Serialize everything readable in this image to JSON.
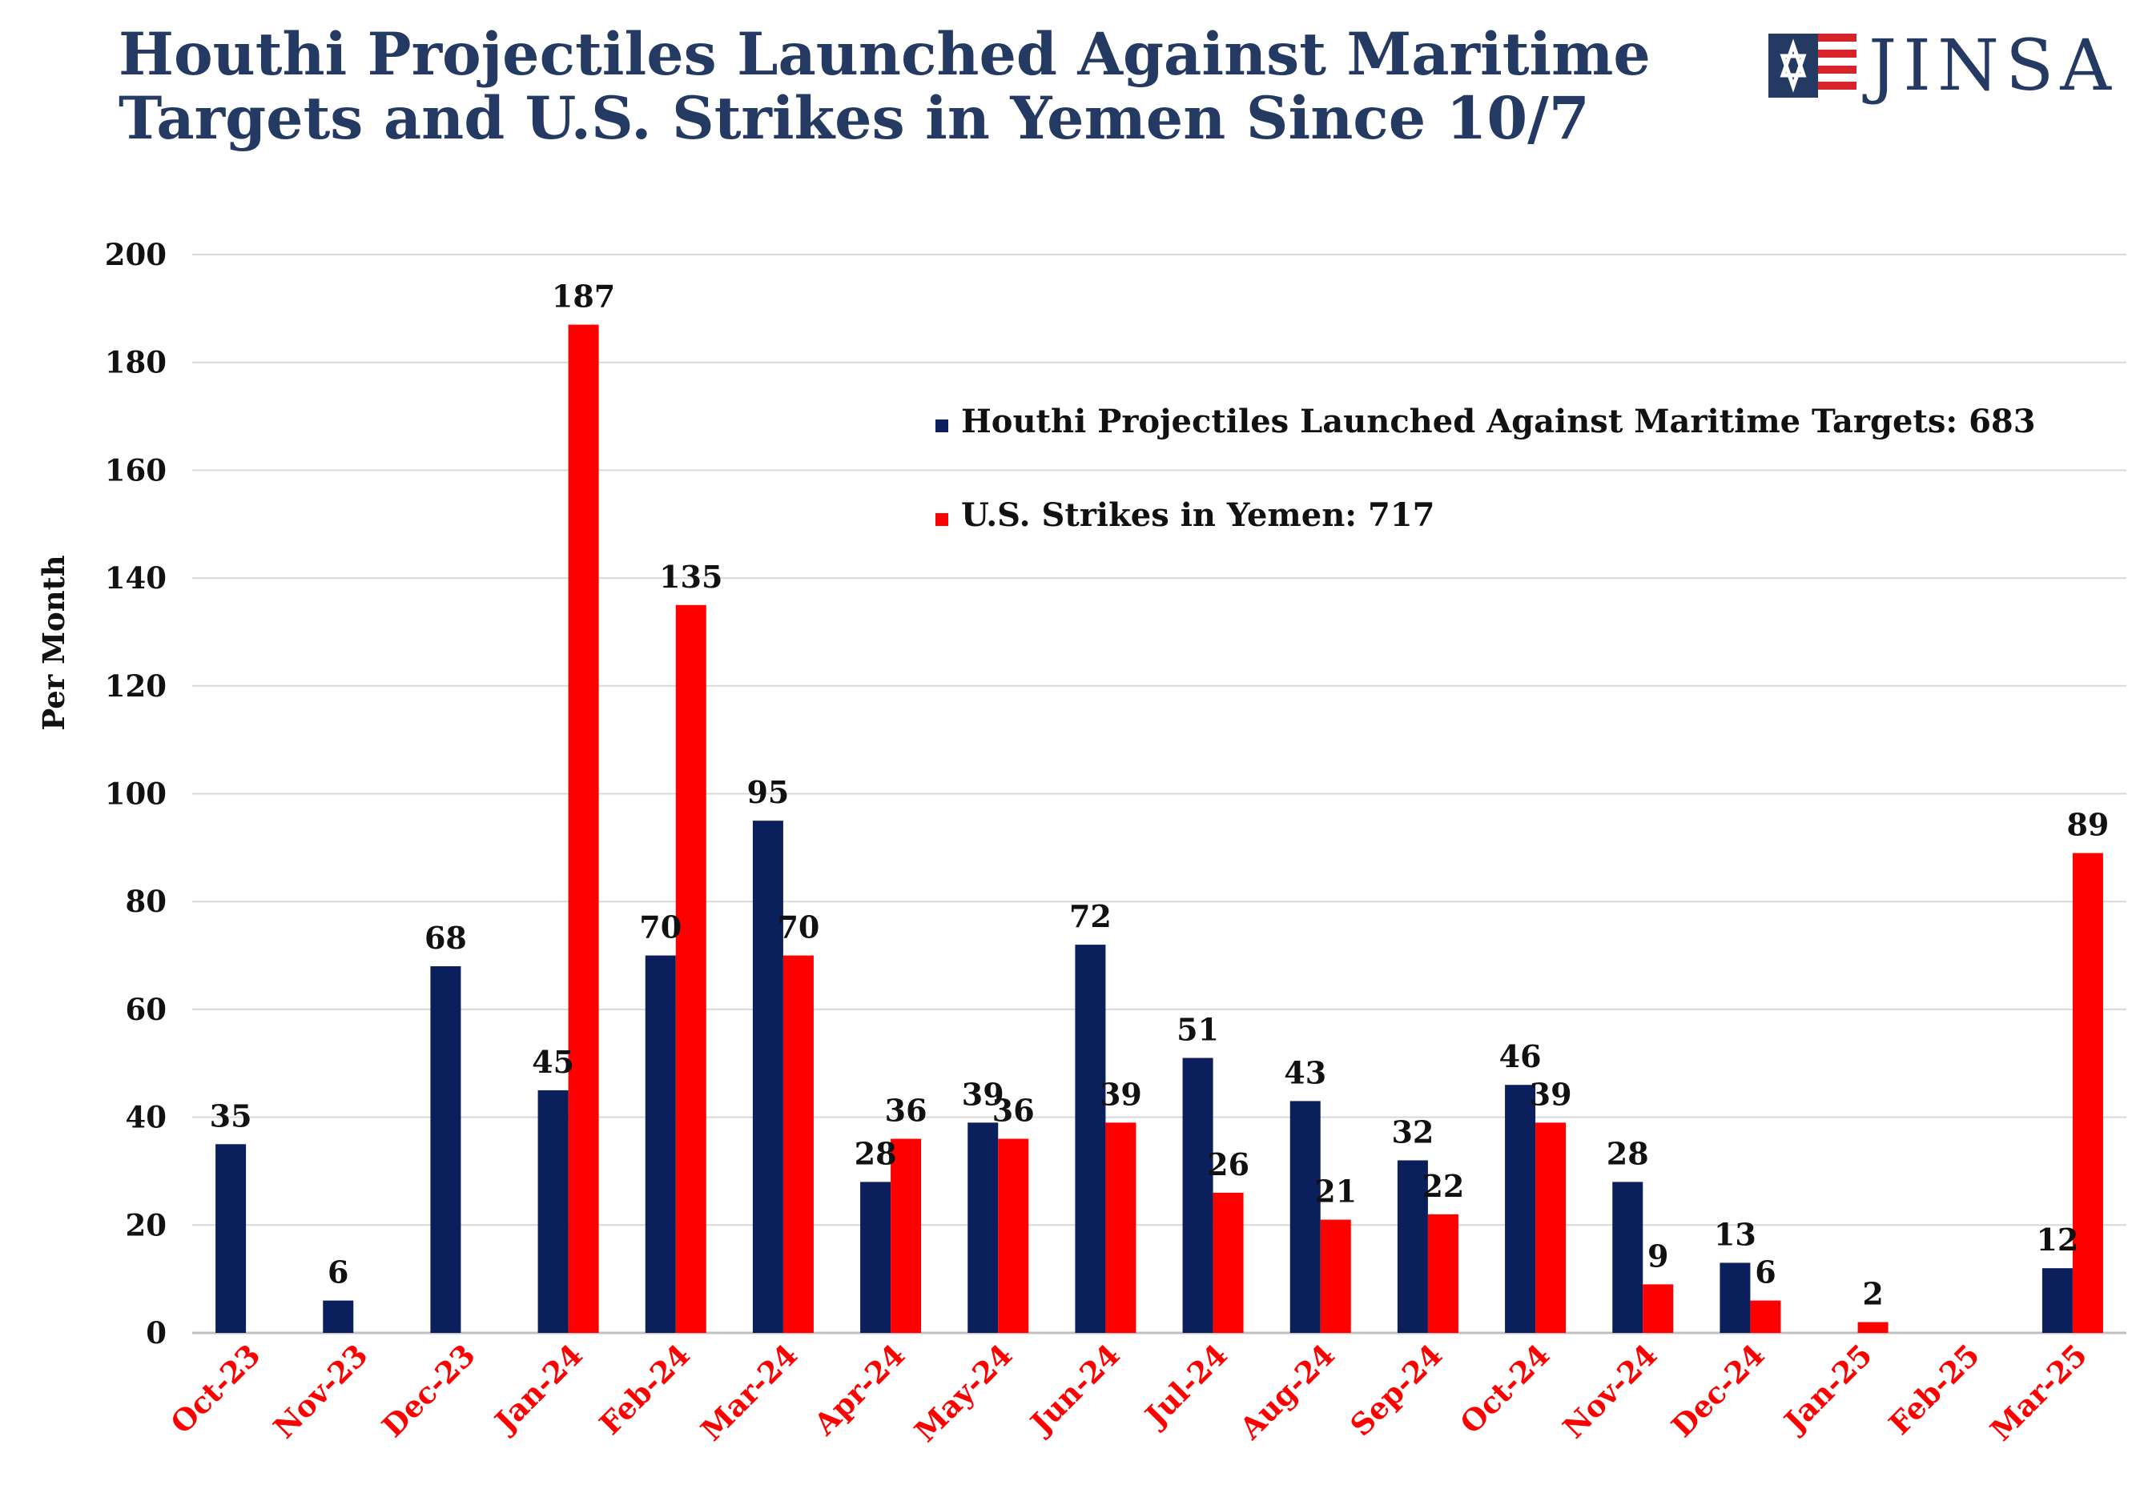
{
  "title": {
    "line1": "Houthi Projectiles Launched Against Maritime",
    "line2": "Targets and U.S. Strikes in Yemen Since 10/7"
  },
  "logo": {
    "text": "JINSA",
    "icon": "flag-star-icon"
  },
  "colors": {
    "houthi": "#0b1f5c",
    "us": "#ff0000",
    "title": "#243a63",
    "xlabel": "#ff0000",
    "grid": "#d9d9d9"
  },
  "chart_data": {
    "type": "bar",
    "title": "Houthi Projectiles Launched Against Maritime Targets and U.S. Strikes in Yemen Since 10/7",
    "xlabel": "",
    "ylabel": "Per Month",
    "ylim": [
      0,
      200
    ],
    "yticks": [
      0,
      20,
      40,
      60,
      80,
      100,
      120,
      140,
      160,
      180,
      200
    ],
    "grid": true,
    "legend_position": "top-right",
    "categories": [
      "Oct-23",
      "Nov-23",
      "Dec-23",
      "Jan-24",
      "Feb-24",
      "Mar-24",
      "Apr-24",
      "May-24",
      "Jun-24",
      "Jul-24",
      "Aug-24",
      "Sep-24",
      "Oct-24",
      "Nov-24",
      "Dec-24",
      "Jan-25",
      "Feb-25",
      "Mar-25"
    ],
    "series": [
      {
        "name": "Houthi Projectiles Launched Against Maritime Targets",
        "legend_label": "Houthi Projectiles Launched Against Maritime Targets: 683",
        "color": "#0b1f5c",
        "values": [
          35,
          6,
          68,
          45,
          70,
          95,
          28,
          39,
          72,
          51,
          43,
          32,
          46,
          28,
          13,
          null,
          null,
          12
        ]
      },
      {
        "name": "U.S. Strikes in Yemen",
        "legend_label": "U.S. Strikes in Yemen: 717",
        "color": "#ff0000",
        "values": [
          null,
          null,
          null,
          187,
          135,
          70,
          36,
          36,
          39,
          26,
          21,
          22,
          39,
          9,
          6,
          2,
          null,
          89
        ]
      }
    ]
  }
}
